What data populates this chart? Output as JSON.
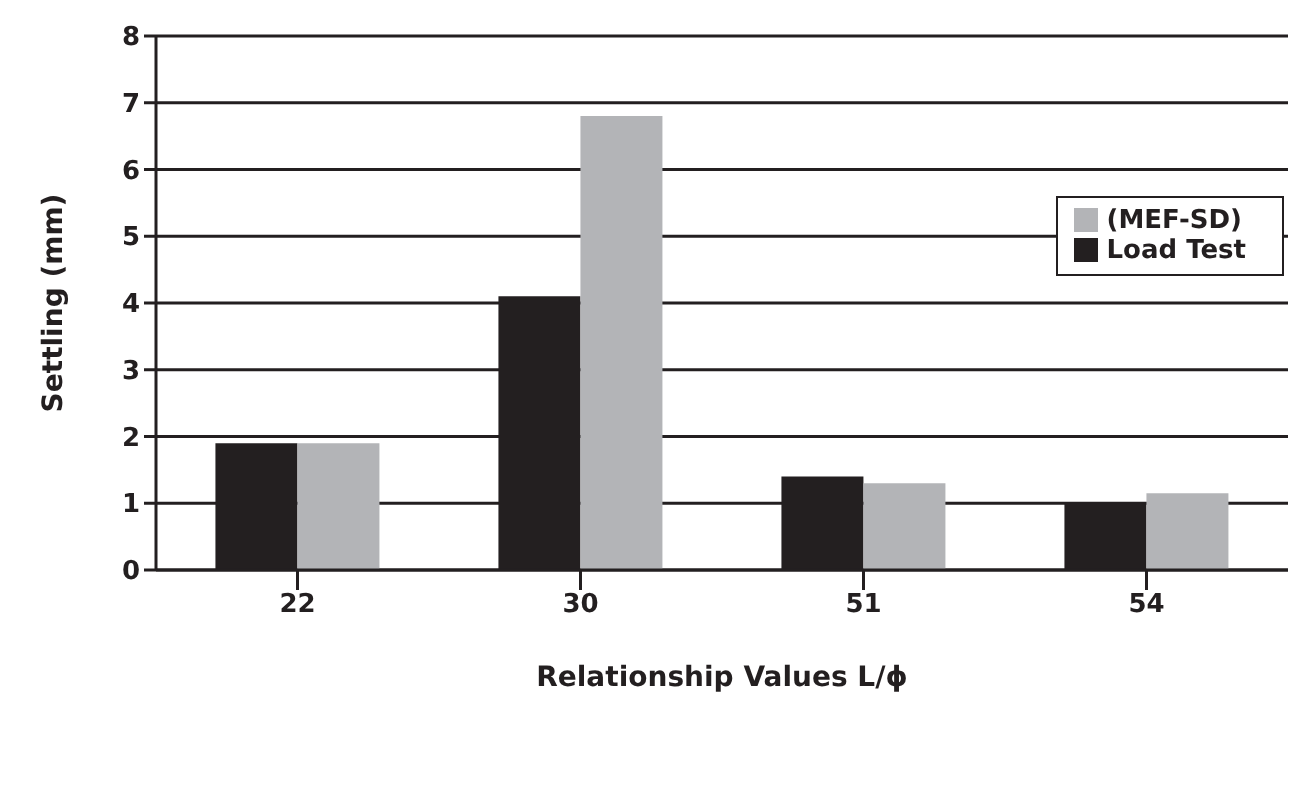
{
  "chart_data": {
    "type": "bar",
    "xlabel": "Relationship Values L/ϕ",
    "ylabel": "Settling (mm)",
    "categories": [
      "22",
      "30",
      "51",
      "54"
    ],
    "series": [
      {
        "name": "Load Test",
        "color": "#231f20",
        "values": [
          1.9,
          4.1,
          1.4,
          1.0
        ]
      },
      {
        "name": "(MEF-SD)",
        "color": "#b3b4b7",
        "values": [
          1.9,
          6.8,
          1.3,
          1.15
        ]
      }
    ],
    "ylim": [
      0,
      8
    ],
    "yticks": [
      0,
      1,
      2,
      3,
      4,
      5,
      6,
      7,
      8
    ],
    "grid": "y",
    "legend": "top right"
  }
}
